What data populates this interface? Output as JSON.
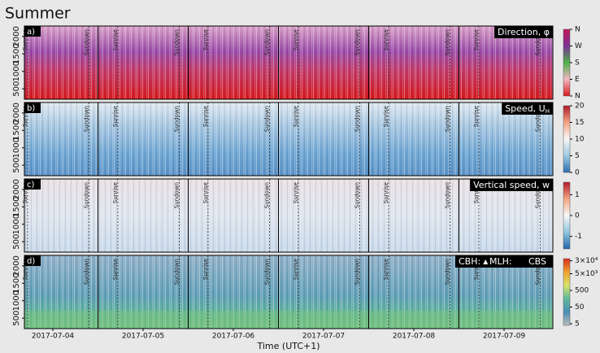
{
  "chart_data": {
    "type": "heatmap",
    "title": "Summer",
    "xlabel": "Time (UTC+1)",
    "categories": [
      "2017-07-04",
      "2017-07-05",
      "2017-07-06",
      "2017-07-07",
      "2017-07-08",
      "2017-07-09"
    ],
    "annotations": [
      "Sunrise",
      "Sundown"
    ],
    "ylim": [
      200,
      2300
    ],
    "yticks": [
      500,
      1000,
      1500,
      2000
    ],
    "panels": [
      {
        "label": "a)",
        "legend": "Direction, φ",
        "colorbar": {
          "lim": [
            0,
            4
          ],
          "log": false,
          "colors": [
            "#d7191c",
            "#f4b6c2",
            "#4daf4a",
            "#7b3294",
            "#c2185b"
          ],
          "ticks": [
            {
              "value": 0,
              "label": "N"
            },
            {
              "value": 1,
              "label": "E"
            },
            {
              "value": 2,
              "label": "S"
            },
            {
              "value": 3,
              "label": "W"
            },
            {
              "value": 4,
              "label": "N"
            }
          ]
        }
      },
      {
        "label": "b)",
        "legend": "Speed, U",
        "legend_sub": "H",
        "colorbar": {
          "lim": [
            0,
            20
          ],
          "log": false,
          "colors": [
            "#2c6fb0",
            "#9ecae1",
            "#f7f7f7",
            "#f4a582",
            "#b2182b"
          ],
          "ticks": [
            0,
            5,
            10,
            15,
            20
          ]
        }
      },
      {
        "label": "c)",
        "legend": "Vertical speed, w",
        "colorbar": {
          "lim": [
            -1.6,
            1.6
          ],
          "log": false,
          "colors": [
            "#2166ac",
            "#92c5de",
            "#f7f7f7",
            "#f4a582",
            "#b2182b"
          ],
          "ticks": [
            -1,
            0,
            1
          ]
        }
      },
      {
        "label": "d)",
        "legend_items": [
          "CBH:",
          "MLH:",
          "CBS"
        ],
        "colorbar": {
          "lim": [
            4,
            40000
          ],
          "log": true,
          "colors": [
            "#bdbdbd",
            "#4a8fb5",
            "#5fb89a",
            "#d9e36b",
            "#f0a030",
            "#d7301f"
          ],
          "ticks": [
            5,
            50,
            500,
            {
              "value": 5000,
              "label": "5×10³"
            },
            {
              "value": 30000,
              "label": "3×10⁴"
            }
          ]
        }
      }
    ]
  }
}
